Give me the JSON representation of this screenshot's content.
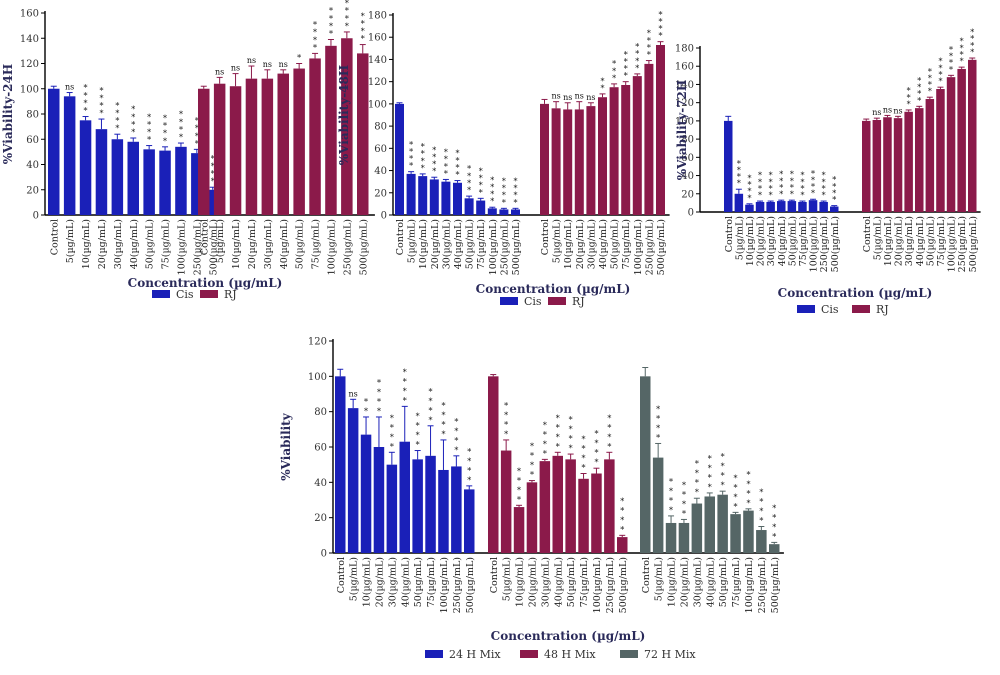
{
  "chart_data": [
    {
      "type": "bar",
      "ylabel": "%Viability-24H",
      "xlabel": "Concentration (µg/mL)",
      "ylim": [
        0,
        160
      ],
      "yticks": [
        0,
        20,
        40,
        60,
        80,
        100,
        120,
        140,
        160
      ],
      "categories": [
        "Control",
        "5(µg/mL)",
        "10(µg/mL)",
        "20(µg/mL)",
        "30(µg/mL)",
        "40(µg/mL)",
        "50(µg/mL)",
        "75(µg/mL)",
        "100(µg/mL)",
        "250(µg/mL)",
        "500(µg/mL)"
      ],
      "legend": [
        "Cis",
        "RJ"
      ],
      "series": [
        {
          "name": "Cis",
          "color": "#1a20b8",
          "values": [
            100,
            94,
            75,
            68,
            60,
            58,
            52,
            51,
            54,
            49,
            20
          ],
          "errors": [
            2,
            3,
            3,
            8,
            4,
            3,
            3,
            3,
            3,
            3,
            2
          ],
          "sig": [
            "",
            "ns",
            "****",
            "****",
            "****",
            "****",
            "****",
            "****",
            "****",
            "****",
            "****"
          ]
        },
        {
          "name": "RJ",
          "color": "#8b1a4a",
          "values": [
            100,
            104,
            102,
            108,
            108,
            112,
            116,
            124,
            134,
            140,
            128
          ],
          "errors": [
            2,
            5,
            10,
            10,
            7,
            3,
            4,
            4,
            5,
            5,
            7
          ],
          "sig": [
            "",
            "ns",
            "ns",
            "ns",
            "ns",
            "ns",
            "*",
            "****",
            "****",
            "****",
            "****"
          ]
        }
      ]
    },
    {
      "type": "bar",
      "ylabel": "%Viability-48H",
      "xlabel": "Concentration (µg/mL)",
      "ylim": [
        0,
        180
      ],
      "yticks": [
        0,
        20,
        40,
        60,
        80,
        100,
        120,
        140,
        160,
        180
      ],
      "categories": [
        "Control",
        "5(µg/mL)",
        "10(µg/mL)",
        "20(µg/mL)",
        "30(µg/mL)",
        "40(µg/mL)",
        "50(µg/mL)",
        "75(µg/mL)",
        "100(µg/mL)",
        "250(µg/mL)",
        "500(µg/mL)"
      ],
      "legend": [
        "Cis",
        "RJ"
      ],
      "series": [
        {
          "name": "Cis",
          "color": "#1a20b8",
          "values": [
            100,
            37,
            35,
            32,
            30,
            29,
            15,
            13,
            6,
            5,
            5
          ],
          "errors": [
            1,
            2,
            2,
            2,
            2,
            2,
            2,
            2,
            1,
            1,
            1
          ],
          "sig": [
            "",
            "****",
            "****",
            "****",
            "****",
            "****",
            "****",
            "****",
            "****",
            "****",
            "****"
          ]
        },
        {
          "name": "RJ",
          "color": "#8b1a4a",
          "values": [
            100,
            96,
            95,
            95,
            98,
            106,
            115,
            117,
            125,
            136,
            153
          ],
          "errors": [
            4,
            6,
            6,
            7,
            3,
            3,
            3,
            3,
            2,
            3,
            3
          ],
          "sig": [
            "",
            "ns",
            "ns",
            "ns",
            "ns",
            "**",
            "***",
            "****",
            "****",
            "****",
            "****"
          ]
        }
      ]
    },
    {
      "type": "bar",
      "ylabel": "%Viability-72H",
      "xlabel": "Concentration (µg/mL)",
      "ylim": [
        0,
        180
      ],
      "yticks": [
        0,
        20,
        40,
        60,
        80,
        100,
        120,
        140,
        160,
        180
      ],
      "categories": [
        "Control",
        "5(µg/mL)",
        "10(µg/mL)",
        "20(µg/mL)",
        "30(µg/mL)",
        "40(µg/mL)",
        "50(µg/mL)",
        "75(µg/mL)",
        "100(µg/mL)",
        "250(µg/mL)",
        "500(µg/mL)"
      ],
      "legend": [
        "Cis",
        "RJ"
      ],
      "series": [
        {
          "name": "Cis",
          "color": "#1a20b8",
          "values": [
            100,
            20,
            8,
            11,
            11,
            12,
            12,
            11,
            13,
            11,
            6
          ],
          "errors": [
            5,
            5,
            1,
            1,
            1,
            1,
            1,
            1,
            1,
            1,
            1
          ],
          "sig": [
            "",
            "****",
            "****",
            "****",
            "****",
            "****",
            "****",
            "****",
            "****",
            "****",
            "****"
          ]
        },
        {
          "name": "RJ",
          "color": "#8b1a4a",
          "values": [
            100,
            101,
            104,
            103,
            110,
            114,
            124,
            135,
            148,
            157,
            167
          ],
          "errors": [
            2,
            2,
            2,
            2,
            2,
            2,
            2,
            2,
            2,
            2,
            2
          ],
          "sig": [
            "",
            "ns",
            "ns",
            "ns",
            "***",
            "****",
            "****",
            "****",
            "****",
            "****",
            "****"
          ]
        }
      ]
    },
    {
      "type": "bar",
      "ylabel": "%Viability",
      "xlabel": "Concentration (µg/mL)",
      "ylim": [
        0,
        120
      ],
      "yticks": [
        0,
        20,
        40,
        60,
        80,
        100,
        120
      ],
      "categories": [
        "Control",
        "5(µg/mL)",
        "10(µg/mL)",
        "20(µg/mL)",
        "30(µg/mL)",
        "40(µg/mL)",
        "50(µg/mL)",
        "75(µg/mL)",
        "100(µg/mL)",
        "250(µg/mL)",
        "500(µg/mL)"
      ],
      "legend": [
        "24 H Mix",
        "48 H Mix",
        "72 H Mix"
      ],
      "series": [
        {
          "name": "24 H Mix",
          "color": "#1a20b8",
          "values": [
            100,
            82,
            67,
            60,
            50,
            63,
            53,
            55,
            47,
            49,
            36
          ],
          "errors": [
            4,
            5,
            10,
            17,
            7,
            20,
            5,
            17,
            17,
            6,
            2
          ],
          "sig": [
            "",
            "ns",
            "**",
            "****",
            "****",
            "****",
            "****",
            "****",
            "****",
            "****",
            "****"
          ]
        },
        {
          "name": "48 H Mix",
          "color": "#8b1a4a",
          "values": [
            100,
            58,
            26,
            40,
            52,
            55,
            53,
            42,
            45,
            53,
            9
          ],
          "errors": [
            1,
            6,
            1,
            1,
            1,
            2,
            3,
            3,
            3,
            4,
            1
          ],
          "sig": [
            "",
            "****",
            "****",
            "****",
            "****",
            "****",
            "****",
            "****",
            "****",
            "****",
            "****"
          ]
        },
        {
          "name": "72 H Mix",
          "color": "#556666",
          "values": [
            100,
            54,
            17,
            17,
            28,
            32,
            33,
            22,
            24,
            13,
            5
          ],
          "errors": [
            5,
            8,
            4,
            2,
            3,
            2,
            2,
            1,
            1,
            2,
            1
          ],
          "sig": [
            "",
            "****",
            "****",
            "****",
            "****",
            "****",
            "****",
            "****",
            "****",
            "****",
            "****"
          ]
        }
      ]
    }
  ]
}
